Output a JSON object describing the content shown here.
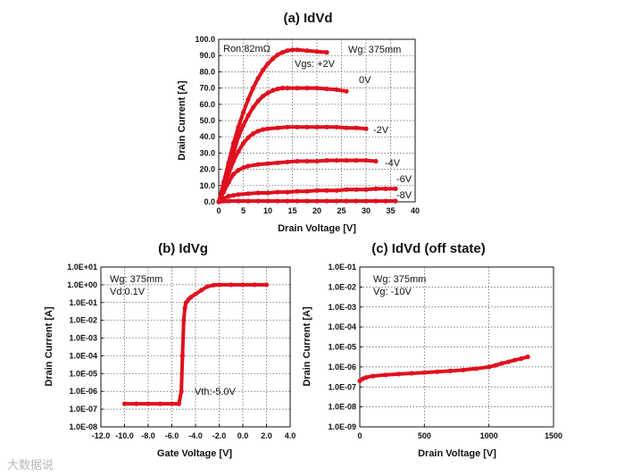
{
  "chart_data": [
    {
      "id": "a",
      "type": "line",
      "title": "(a) IdVd",
      "xlabel": "Drain Voltage [V]",
      "ylabel": "Drain Current [A]",
      "xlim": [
        0,
        40
      ],
      "ylim": [
        0,
        100
      ],
      "xticks": [
        "0",
        "5",
        "10",
        "15",
        "20",
        "25",
        "30",
        "35",
        "40"
      ],
      "yticks": [
        "0.0",
        "10.0",
        "20.0",
        "30.0",
        "40.0",
        "50.0",
        "60.0",
        "70.0",
        "80.0",
        "90.0",
        "100.0"
      ],
      "grid": true,
      "annotations": [
        "Ron:82mΩ",
        "Wg: 375mm",
        "Vgs: +2V",
        "0V",
        "-2V",
        "-4V",
        "-6V",
        "-8V"
      ],
      "series": [
        {
          "name": "Vgs: +2V",
          "x": [
            0,
            1,
            2,
            3,
            4,
            5,
            6,
            7,
            8,
            9,
            10,
            11,
            12,
            13,
            14,
            15,
            16,
            18,
            20,
            22
          ],
          "y": [
            0,
            12,
            24,
            36,
            46,
            55,
            63,
            70,
            76,
            81,
            85,
            88,
            90.5,
            92,
            93,
            93.5,
            93.5,
            93,
            92.5,
            92
          ]
        },
        {
          "name": "0V",
          "x": [
            0,
            1,
            2,
            3,
            4,
            5,
            6,
            7,
            8,
            9,
            10,
            11,
            12,
            13,
            14,
            16,
            18,
            20,
            22,
            24,
            26
          ],
          "y": [
            0,
            10,
            20,
            30,
            40,
            47,
            53,
            58,
            62,
            65,
            67,
            68.5,
            69.5,
            70,
            70,
            70,
            70,
            70,
            69.5,
            69,
            68
          ]
        },
        {
          "name": "-2V",
          "x": [
            0,
            1,
            2,
            3,
            4,
            5,
            6,
            7,
            8,
            9,
            10,
            12,
            14,
            16,
            18,
            20,
            22,
            24,
            26,
            28,
            30
          ],
          "y": [
            0,
            8,
            17,
            25,
            31,
            36,
            39.5,
            42,
            43.5,
            44.5,
            45,
            45.5,
            46,
            46,
            46,
            46,
            46,
            46,
            45.5,
            45.5,
            45
          ]
        },
        {
          "name": "-4V",
          "x": [
            0,
            1,
            2,
            3,
            4,
            5,
            6,
            8,
            10,
            12,
            14,
            16,
            18,
            20,
            22,
            24,
            26,
            28,
            30,
            32
          ],
          "y": [
            0,
            6,
            12,
            17,
            19.5,
            21,
            22,
            23,
            23.5,
            24,
            24.5,
            25,
            25,
            25,
            25.5,
            25.5,
            25.5,
            25.5,
            25.5,
            25
          ]
        },
        {
          "name": "-6V",
          "x": [
            0,
            1,
            2,
            3,
            4,
            6,
            8,
            10,
            12,
            14,
            16,
            18,
            20,
            22,
            24,
            26,
            28,
            30,
            32,
            34,
            36
          ],
          "y": [
            0,
            2,
            3.5,
            4,
            4.5,
            5,
            5.5,
            5.5,
            6,
            6,
            6.5,
            6.5,
            7,
            7,
            7,
            7.5,
            7.5,
            7.5,
            8,
            8,
            8
          ]
        },
        {
          "name": "-8V",
          "x": [
            0,
            2,
            4,
            6,
            8,
            10,
            12,
            14,
            16,
            18,
            20,
            22,
            24,
            26,
            28,
            30,
            32,
            34,
            36
          ],
          "y": [
            0,
            0.5,
            0.5,
            0.5,
            0.5,
            0.5,
            0.5,
            0.5,
            0.5,
            0.5,
            0.5,
            0.5,
            0.5,
            0.5,
            0.5,
            0.5,
            0.5,
            0.5,
            0.5
          ]
        }
      ]
    },
    {
      "id": "b",
      "type": "line",
      "title": "(b) IdVg",
      "xlabel": "Gate Voltage [V]",
      "ylabel": "Drain Current [A]",
      "xlim": [
        -12,
        4
      ],
      "ylim": [
        1e-08,
        10
      ],
      "yscale": "log",
      "xticks": [
        "-12.0",
        "-10.0",
        "-8.0",
        "-6.0",
        "-4.0",
        "-2.0",
        "0.0",
        "2.0",
        "4.0"
      ],
      "yticks": [
        "1.0E-08",
        "1.0E-07",
        "1.0E-06",
        "1.0E-05",
        "1.0E-04",
        "1.0E-03",
        "1.0E-02",
        "1.0E-01",
        "1.0E+00",
        "1.0E+01"
      ],
      "grid": true,
      "annotations": [
        "Wg: 375mm",
        "Vd:0.1V",
        "Vth:-5.0V"
      ],
      "series": [
        {
          "name": "Id",
          "x": [
            -10,
            -9,
            -8,
            -7,
            -6,
            -5.4,
            -5.2,
            -5.1,
            -5.0,
            -4.9,
            -4.8,
            -4.6,
            -4.4,
            -4.0,
            -3.5,
            -3.0,
            -2.5,
            -2.0,
            -1.0,
            0,
            1,
            2
          ],
          "y": [
            2e-07,
            2e-07,
            2e-07,
            2e-07,
            2e-07,
            2e-07,
            1e-06,
            0.0001,
            0.01,
            0.05,
            0.1,
            0.15,
            0.2,
            0.3,
            0.5,
            0.8,
            0.95,
            1.0,
            1.0,
            1.0,
            1.0,
            1.0
          ]
        }
      ]
    },
    {
      "id": "c",
      "type": "line",
      "title": "(c) IdVd (off state)",
      "xlabel": "Drain Voltage [V]",
      "ylabel": "Drain Current [A]",
      "xlim": [
        0,
        1500
      ],
      "ylim": [
        1e-09,
        0.1
      ],
      "yscale": "log",
      "xticks": [
        "0",
        "500",
        "1000",
        "1500"
      ],
      "yticks": [
        "1.0E-09",
        "1.0E-08",
        "1.0E-07",
        "1.0E-06",
        "1.0E-05",
        "1.0E-04",
        "1.0E-03",
        "1.0E-02",
        "1.0E-01"
      ],
      "grid": true,
      "annotations": [
        "Wg: 375mm",
        "Vg: -10V"
      ],
      "series": [
        {
          "name": "Id",
          "x": [
            0,
            25,
            50,
            100,
            200,
            300,
            400,
            500,
            600,
            700,
            800,
            900,
            1000,
            1050,
            1100,
            1150,
            1200,
            1250,
            1300
          ],
          "y": [
            2e-07,
            2.6e-07,
            3e-07,
            3.5e-07,
            4e-07,
            4.4e-07,
            4.8e-07,
            5.2e-07,
            5.7e-07,
            6.3e-07,
            7e-07,
            8.2e-07,
            1e-06,
            1.2e-06,
            1.5e-06,
            1.8e-06,
            2.2e-06,
            2.6e-06,
            3.2e-06
          ]
        }
      ]
    }
  ],
  "colors": {
    "data": "#e0101e",
    "axis": "#111111"
  },
  "watermark": "大数据说"
}
